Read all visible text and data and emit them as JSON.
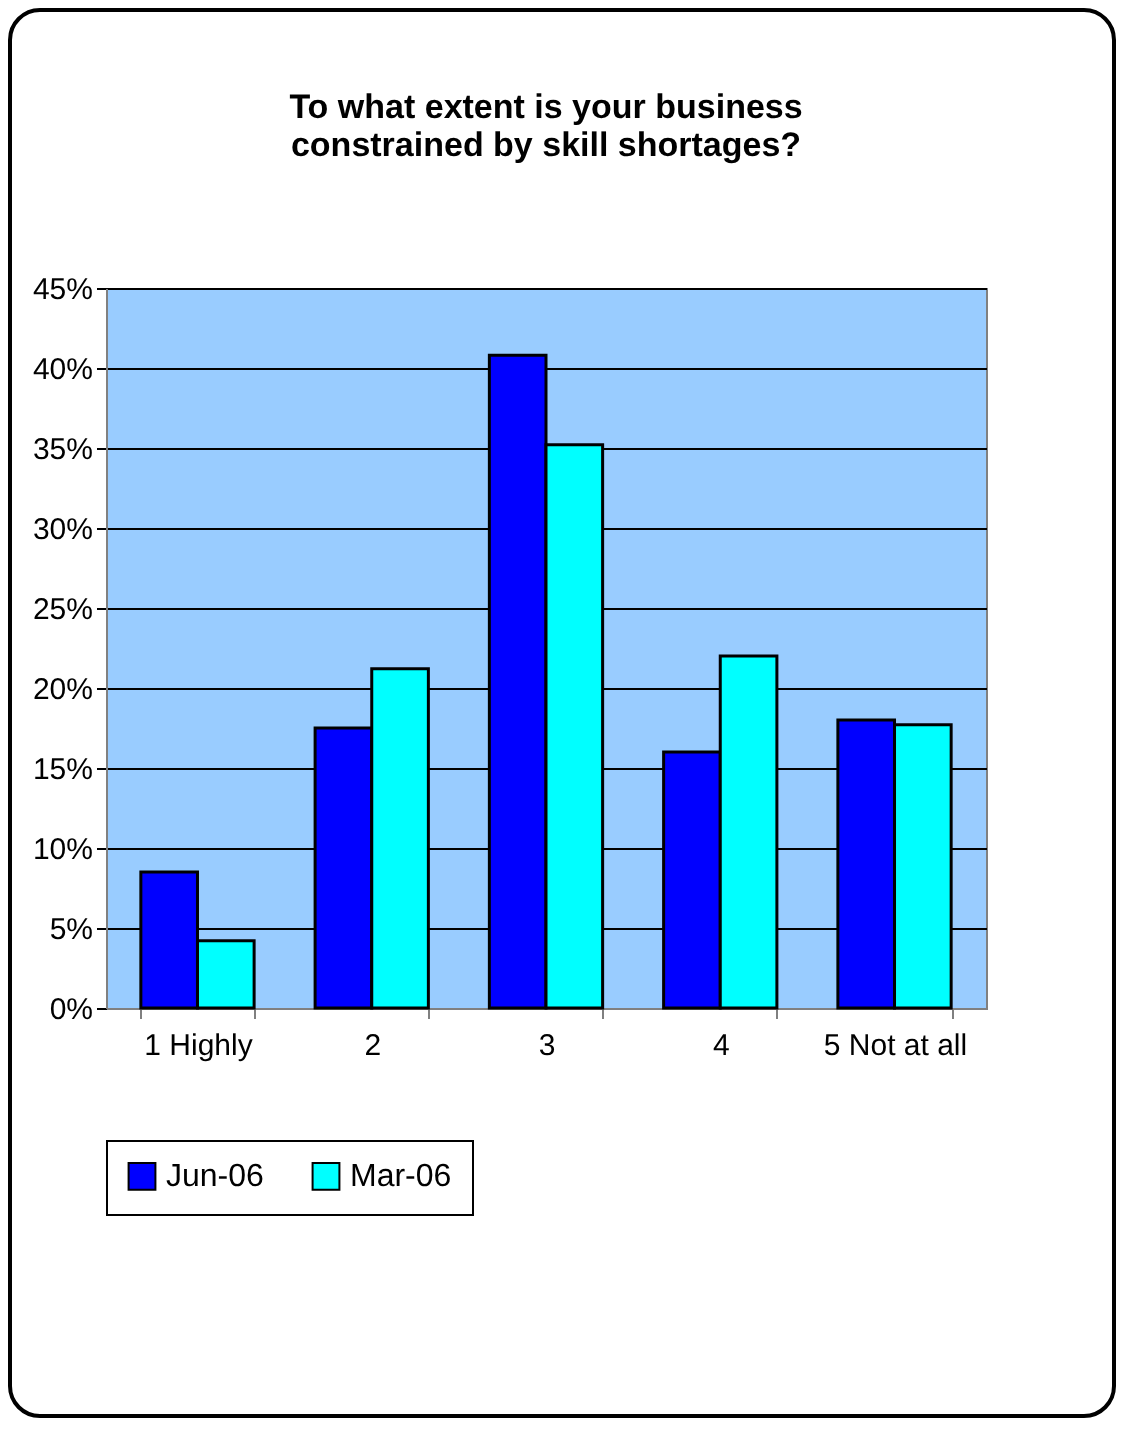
{
  "chart_data": {
    "type": "bar",
    "title": "To what extent is your business constrained by skill shortages?",
    "categories": [
      "1 Highly",
      "2",
      "3",
      "4",
      "5 Not at all"
    ],
    "series": [
      {
        "name": "Jun-06",
        "color": "#0000ff",
        "values": [
          8.5,
          17.5,
          40.8,
          16,
          18
        ]
      },
      {
        "name": "Mar-06",
        "color": "#00ffff",
        "values": [
          4.2,
          21.2,
          35.2,
          22,
          17.7
        ]
      }
    ],
    "ylim": [
      0,
      45
    ],
    "yticks": [
      {
        "value": 0,
        "label": "0%"
      },
      {
        "value": 5,
        "label": "5%"
      },
      {
        "value": 10,
        "label": "10%"
      },
      {
        "value": 15,
        "label": "15%"
      },
      {
        "value": 20,
        "label": "20%"
      },
      {
        "value": 25,
        "label": "25%"
      },
      {
        "value": 30,
        "label": "30%"
      },
      {
        "value": 35,
        "label": "35%"
      },
      {
        "value": 40,
        "label": "40%"
      },
      {
        "value": 45,
        "label": "45%"
      }
    ],
    "grid": "y",
    "legend": "bottom"
  }
}
